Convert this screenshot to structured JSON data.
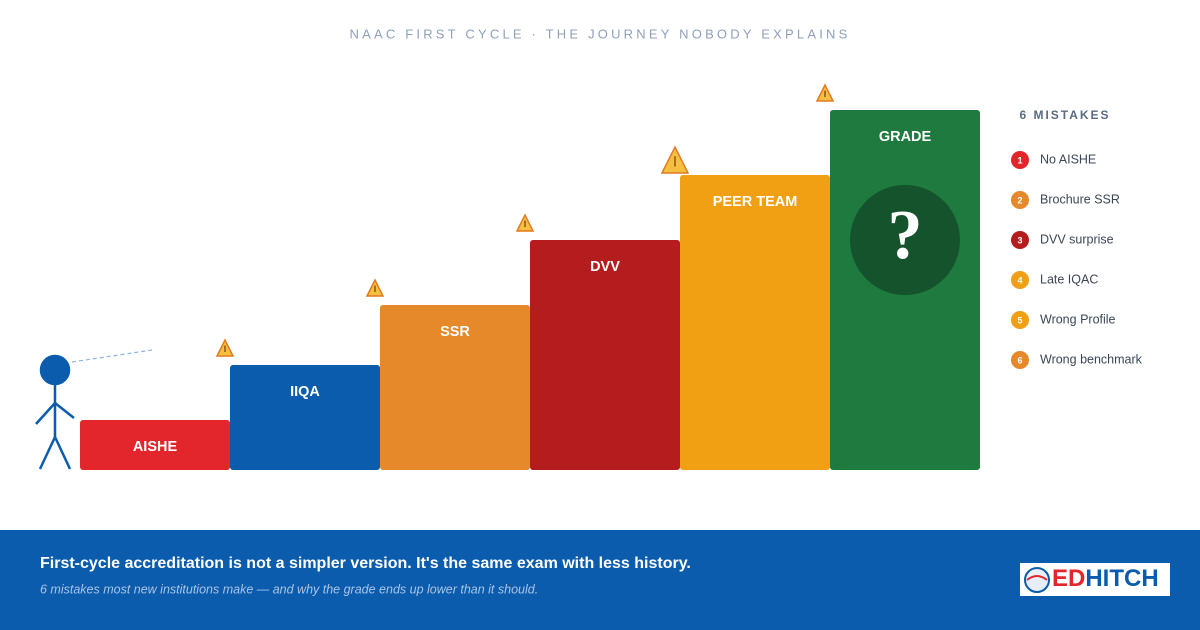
{
  "header": {
    "title": "NAAC FIRST CYCLE · THE JOURNEY NOBODY EXPLAINS"
  },
  "steps": [
    {
      "label": "AISHE",
      "color": "#e3262c"
    },
    {
      "label": "IIQA",
      "color": "#0b5cad"
    },
    {
      "label": "SSR",
      "color": "#e5892a"
    },
    {
      "label": "DVV",
      "color": "#b51c1e"
    },
    {
      "label": "PEER TEAM",
      "color": "#f0a012"
    },
    {
      "label": "GRADE",
      "color": "#1e7a3e"
    }
  ],
  "grade_symbol": "?",
  "mistakes": {
    "title": "6 MISTAKES",
    "items": [
      {
        "number": 1,
        "label": "No AISHE",
        "color": "#e3262c"
      },
      {
        "number": 2,
        "label": "Brochure SSR",
        "color": "#e5892a"
      },
      {
        "number": 3,
        "label": "DVV surprise",
        "color": "#b51c1e"
      },
      {
        "number": 4,
        "label": "Late IQAC",
        "color": "#f0a012"
      },
      {
        "number": 5,
        "label": "Wrong Profile",
        "color": "#f0a012"
      },
      {
        "number": 6,
        "label": "Wrong benchmark",
        "color": "#e5892a"
      }
    ]
  },
  "footer": {
    "headline": "First-cycle accreditation is not a simpler version. It's the same exam with less history.",
    "subline": "6 mistakes most new institutions make — and why the grade ends up lower than it should."
  },
  "logo": {
    "part1": "ED",
    "part2": "HITCH"
  }
}
